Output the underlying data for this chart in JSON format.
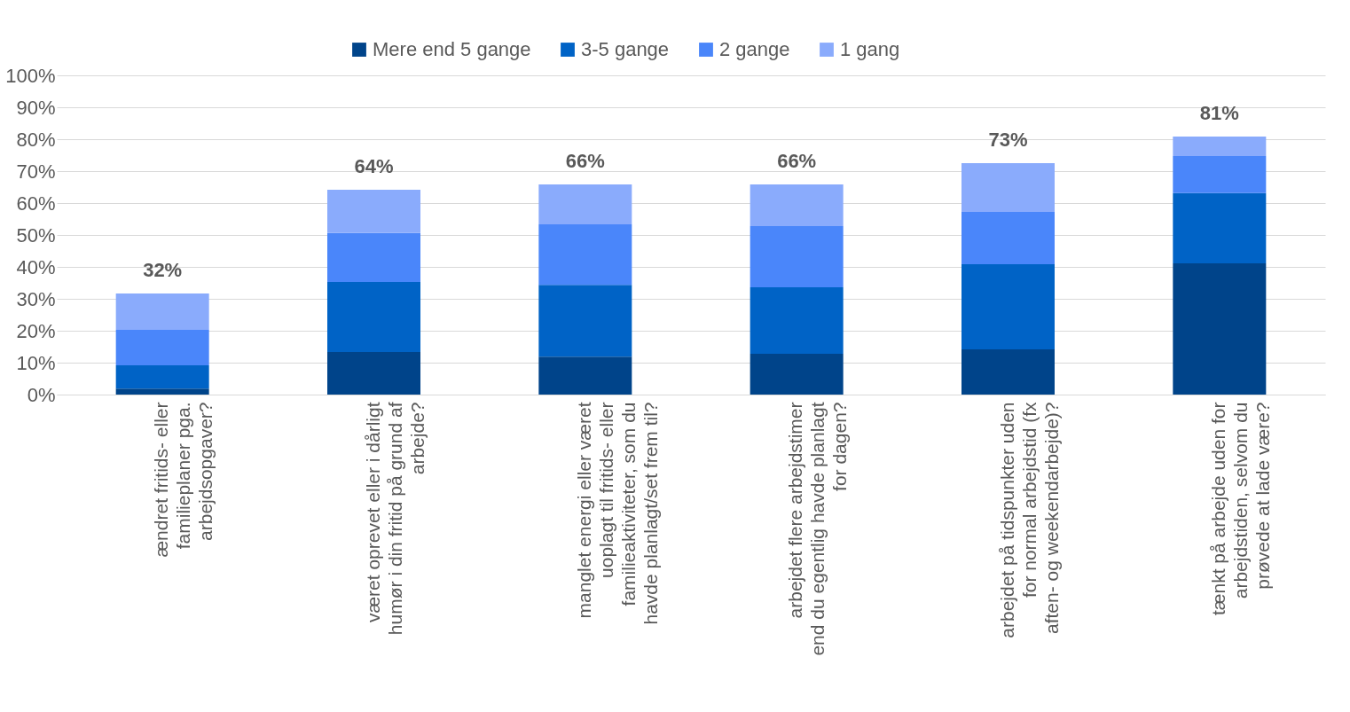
{
  "chart_data": {
    "type": "bar",
    "stacked": true,
    "categories": [
      "ændret fritids- eller familieplaner pga. arbejdsopgaver?",
      "været oprevet eller i dårligt humør i din fritid på grund af arbejde?",
      "manglet energi eller været uoplagt til fritids- eller familieaktiviteter, som du havde planlagt/set frem til?",
      "arbejdet flere arbejdstimer end du egentlig havde planlagt for dagen?",
      "arbejdet på tidspunkter uden for normal arbejdstid (fx aften- og weekendarbejde)?",
      "tænkt på arbejde uden for arbejdstiden, selvom du prøvede at lade være?"
    ],
    "series": [
      {
        "name": "Mere end 5 gange",
        "color": "#00448a",
        "values": [
          1.9,
          13.3,
          11.9,
          12.8,
          14.2,
          41.1
        ]
      },
      {
        "name": "3-5 gange",
        "color": "#0063c6",
        "values": [
          7.3,
          22.0,
          22.5,
          20.8,
          26.6,
          22.0
        ]
      },
      {
        "name": "2 gange",
        "color": "#4a86fa",
        "values": [
          11.1,
          15.3,
          18.9,
          19.2,
          16.4,
          11.6
        ]
      },
      {
        "name": "1 gang",
        "color": "#8aabfc",
        "values": [
          11.4,
          13.6,
          12.5,
          13.0,
          15.3,
          6.1
        ]
      }
    ],
    "totals": [
      "32%",
      "64%",
      "66%",
      "66%",
      "73%",
      "81%"
    ],
    "ylim": [
      0,
      100
    ],
    "yticks": [
      {
        "value": 0,
        "label": "0%"
      },
      {
        "value": 10,
        "label": "10%"
      },
      {
        "value": 20,
        "label": "20%"
      },
      {
        "value": 30,
        "label": "30%"
      },
      {
        "value": 40,
        "label": "40%"
      },
      {
        "value": 50,
        "label": "50%"
      },
      {
        "value": 60,
        "label": "60%"
      },
      {
        "value": 70,
        "label": "70%"
      },
      {
        "value": 80,
        "label": "80%"
      },
      {
        "value": 90,
        "label": "90%"
      },
      {
        "value": 100,
        "label": "100%"
      }
    ],
    "grid": "y",
    "legend": "top"
  }
}
